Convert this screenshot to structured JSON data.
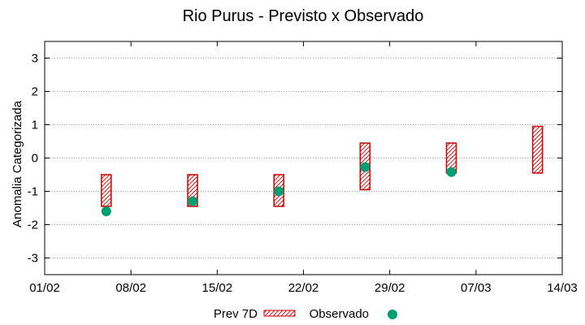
{
  "chart_data": {
    "type": "floating-bar-with-points",
    "title": "Rio Purus - Previsto x Observado",
    "xlabel": "",
    "ylabel": "Anomalia Categorizada",
    "ylim": [
      -3.5,
      3.5
    ],
    "yticks": [
      -3,
      -2,
      -1,
      0,
      1,
      2,
      3
    ],
    "ytick_labels": [
      "-3",
      "-2",
      "-1",
      "0",
      "1",
      "2",
      "3"
    ],
    "xlim": [
      0,
      42
    ],
    "xticks": [
      0,
      7,
      14,
      21,
      28,
      35,
      42
    ],
    "xtick_labels": [
      "01/02",
      "08/02",
      "15/02",
      "22/02",
      "29/02",
      "07/03",
      "14/03"
    ],
    "grid": "horizontal-dotted",
    "legend_placement": "bottom",
    "colors": {
      "forecast": "#cc0000",
      "observed": "#009e73",
      "grid": "#999999"
    },
    "series": [
      {
        "name": "Prev 7D",
        "kind": "range",
        "points": [
          {
            "x": 5,
            "low": -1.45,
            "high": -0.5
          },
          {
            "x": 12,
            "low": -1.45,
            "high": -0.5
          },
          {
            "x": 19,
            "low": -1.45,
            "high": -0.5
          },
          {
            "x": 26,
            "low": -0.95,
            "high": 0.45
          },
          {
            "x": 33,
            "low": -0.45,
            "high": 0.45
          },
          {
            "x": 40,
            "low": -0.45,
            "high": 0.95
          }
        ]
      },
      {
        "name": "Observado",
        "kind": "point",
        "points": [
          {
            "x": 5,
            "y": -1.6
          },
          {
            "x": 12,
            "y": -1.3
          },
          {
            "x": 19,
            "y": -1.0
          },
          {
            "x": 26,
            "y": -0.27
          },
          {
            "x": 33,
            "y": -0.42
          }
        ]
      }
    ]
  }
}
